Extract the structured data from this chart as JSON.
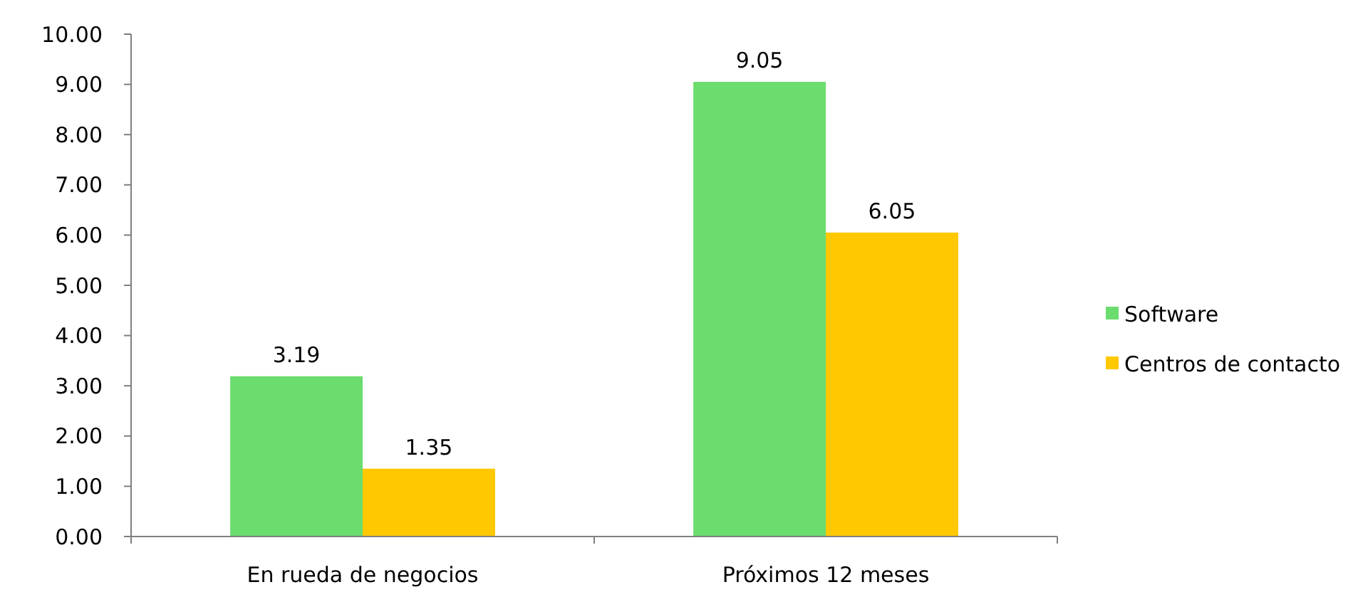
{
  "chart_data": {
    "type": "bar",
    "categories": [
      "En rueda de negocios",
      "Próximos 12 meses"
    ],
    "series": [
      {
        "name": "Software",
        "color": "#6bdc6e",
        "values": [
          3.19,
          9.05
        ]
      },
      {
        "name": "Centros de contacto",
        "color": "#ffc800",
        "values": [
          1.35,
          6.05
        ]
      }
    ],
    "ylim": [
      0,
      10
    ],
    "yticks": [
      {
        "value": 0,
        "label": "0.00"
      },
      {
        "value": 1,
        "label": "1.00"
      },
      {
        "value": 2,
        "label": "2.00"
      },
      {
        "value": 3,
        "label": "3.00"
      },
      {
        "value": 4,
        "label": "4.00"
      },
      {
        "value": 5,
        "label": "5.00"
      },
      {
        "value": 6,
        "label": "6.00"
      },
      {
        "value": 7,
        "label": "7.00"
      },
      {
        "value": 8,
        "label": "8.00"
      },
      {
        "value": 9,
        "label": "9.00"
      },
      {
        "value": 10,
        "label": "10.00"
      }
    ],
    "data_labels": true,
    "legend": "right",
    "grid": false
  }
}
